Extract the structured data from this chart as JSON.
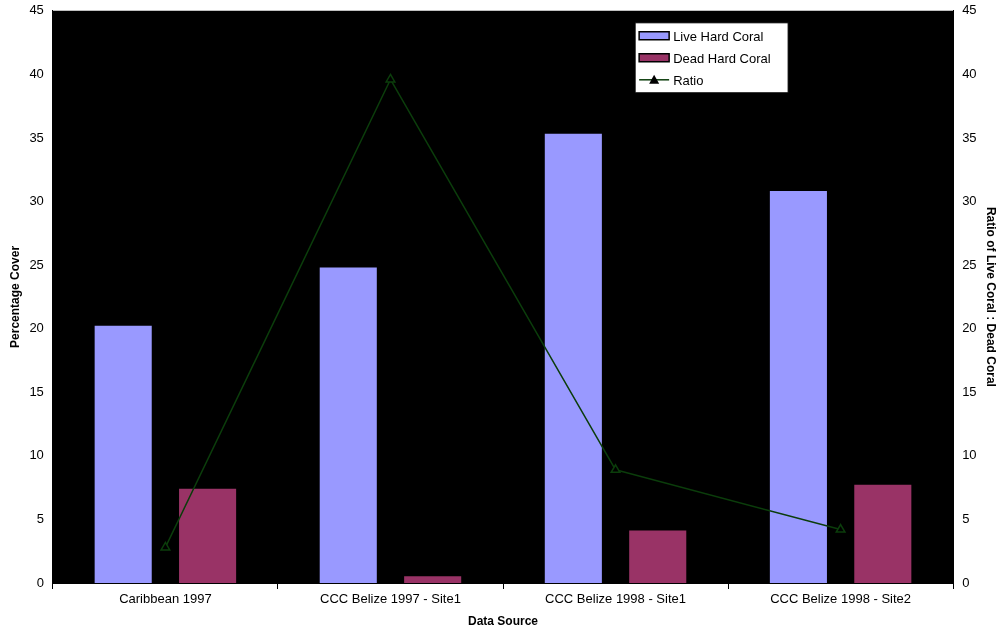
{
  "chart_data": {
    "type": "bar",
    "xlabel": "Data Source",
    "ylabel": "Percentage Cover",
    "y2label": "Ratio of Live Coral : Dead Coral",
    "categories": [
      "Caribbean 1997",
      "CCC Belize 1997 - Site1",
      "CCC Belize 1998 - Site1",
      "CCC Belize 1998 - Site2"
    ],
    "series": [
      {
        "name": "Live Hard Coral",
        "color": "#9999ff",
        "values": [
          20.3,
          24.9,
          35.4,
          30.9
        ]
      },
      {
        "name": "Dead Hard Coral",
        "color": "#993366",
        "values": [
          7.5,
          0.6,
          4.2,
          7.8
        ]
      },
      {
        "name": "Ratio",
        "type": "line",
        "axis": "y2",
        "color": "#0b3d0b",
        "marker": "triangle",
        "values": [
          2.8,
          39.6,
          8.9,
          4.2
        ]
      }
    ],
    "ylim": [
      0,
      45
    ],
    "yticks": [
      0,
      5,
      10,
      15,
      20,
      25,
      30,
      35,
      40,
      45
    ],
    "y2lim": [
      0,
      45
    ],
    "y2ticks": [
      0,
      5,
      10,
      15,
      20,
      25,
      30,
      35,
      40,
      45
    ],
    "grid": false,
    "legend": "top right"
  }
}
